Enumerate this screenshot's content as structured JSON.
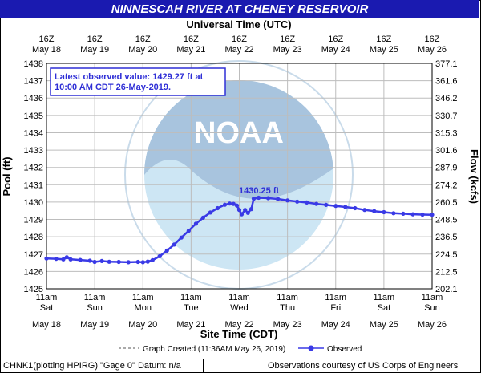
{
  "title": "NINNESCAH RIVER AT CHENEY RESERVOIR",
  "top_axis_title": "Universal Time (UTC)",
  "bottom_axis_title": "Site Time (CDT)",
  "left_axis_title": "Pool (ft)",
  "right_axis_title": "Flow (kcfs)",
  "watermark": "NOAA",
  "latest_note_line1": "Latest observed value: 1429.27 ft at",
  "latest_note_line2": "10:00 AM CDT 26-May-2019.",
  "peak_label": "1430.25 ft",
  "legend": {
    "created": "Graph Created (11:36AM May 26, 2019)",
    "observed": "Observed"
  },
  "footer": {
    "left": "CHNK1(plotting HPIRG) \"Gage 0\" Datum: n/a",
    "right": "Observations courtesy of US Corps of Engineers"
  },
  "colors": {
    "title_bg": "#1a1ab0",
    "series": "#3a3ae6",
    "grid": "#bdbdbd",
    "watermark_blue": "#a8c4de",
    "watermark_light": "#cde6f4"
  },
  "chart_data": {
    "type": "line",
    "x_days": [
      "May 18",
      "May 19",
      "May 20",
      "May 21",
      "May 22",
      "May 23",
      "May 24",
      "May 25",
      "May 26"
    ],
    "x_top_ticks": [
      "16Z",
      "16Z",
      "16Z",
      "16Z",
      "16Z",
      "16Z",
      "16Z",
      "16Z",
      "16Z"
    ],
    "x_bottom_times": [
      "11am",
      "11am",
      "11am",
      "11am",
      "11am",
      "11am",
      "11am",
      "11am",
      "11am"
    ],
    "x_bottom_weekdays": [
      "Sat",
      "Sun",
      "Mon",
      "Tue",
      "Wed",
      "Thu",
      "Fri",
      "Sat",
      "Sun"
    ],
    "y_left_ticks": [
      1425,
      1426,
      1427,
      1428,
      1429,
      1430,
      1431,
      1432,
      1433,
      1434,
      1435,
      1436,
      1437,
      1438
    ],
    "y_right_ticks": [
      "202.1",
      "212.5",
      "224.5",
      "236.5",
      "248.5",
      "260.5",
      "274.2",
      "287.9",
      "301.6",
      "315.3",
      "330.7",
      "346.2",
      "361.6",
      "377.1"
    ],
    "ylim": [
      1425,
      1438
    ],
    "xlim": [
      0,
      8
    ],
    "grid": true,
    "series": [
      {
        "name": "Observed",
        "points": [
          [
            0.0,
            1426.75
          ],
          [
            0.2,
            1426.73
          ],
          [
            0.35,
            1426.7
          ],
          [
            0.42,
            1426.82
          ],
          [
            0.5,
            1426.7
          ],
          [
            0.7,
            1426.66
          ],
          [
            0.9,
            1426.62
          ],
          [
            1.0,
            1426.55
          ],
          [
            1.15,
            1426.6
          ],
          [
            1.3,
            1426.56
          ],
          [
            1.5,
            1426.55
          ],
          [
            1.7,
            1426.53
          ],
          [
            1.9,
            1426.55
          ],
          [
            2.0,
            1426.53
          ],
          [
            2.1,
            1426.57
          ],
          [
            2.2,
            1426.65
          ],
          [
            2.35,
            1426.88
          ],
          [
            2.5,
            1427.2
          ],
          [
            2.65,
            1427.55
          ],
          [
            2.8,
            1427.95
          ],
          [
            2.95,
            1428.35
          ],
          [
            3.1,
            1428.75
          ],
          [
            3.25,
            1429.1
          ],
          [
            3.4,
            1429.4
          ],
          [
            3.55,
            1429.65
          ],
          [
            3.7,
            1429.85
          ],
          [
            3.8,
            1429.92
          ],
          [
            3.88,
            1429.9
          ],
          [
            3.95,
            1429.8
          ],
          [
            4.0,
            1429.55
          ],
          [
            4.05,
            1429.3
          ],
          [
            4.12,
            1429.55
          ],
          [
            4.18,
            1429.38
          ],
          [
            4.25,
            1429.6
          ],
          [
            4.3,
            1430.2
          ],
          [
            4.4,
            1430.25
          ],
          [
            4.6,
            1430.23
          ],
          [
            4.8,
            1430.18
          ],
          [
            5.0,
            1430.1
          ],
          [
            5.2,
            1430.03
          ],
          [
            5.4,
            1429.98
          ],
          [
            5.6,
            1429.9
          ],
          [
            5.8,
            1429.84
          ],
          [
            6.0,
            1429.78
          ],
          [
            6.2,
            1429.72
          ],
          [
            6.4,
            1429.65
          ],
          [
            6.6,
            1429.55
          ],
          [
            6.8,
            1429.48
          ],
          [
            7.0,
            1429.42
          ],
          [
            7.2,
            1429.36
          ],
          [
            7.4,
            1429.33
          ],
          [
            7.6,
            1429.3
          ],
          [
            7.8,
            1429.28
          ],
          [
            8.0,
            1429.27
          ]
        ]
      }
    ]
  }
}
